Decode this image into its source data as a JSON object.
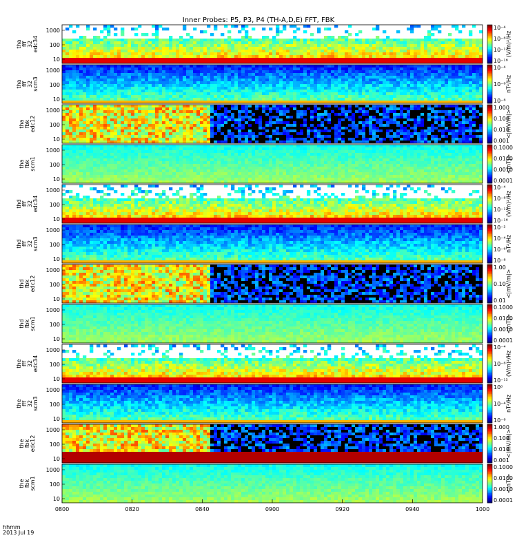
{
  "title": "Inner Probes: P5, P3, P4 (TH-A,D,E) FFT, FBK",
  "time_header": {
    "line1": "hhmm",
    "line2": "2013 Jul 19"
  },
  "chart_data": {
    "type": "heatmap",
    "x_ticks": [
      "0800",
      "0820",
      "0840",
      "0900",
      "0920",
      "0940",
      "1000"
    ],
    "panels": [
      {
        "probe": "tha",
        "ylabel": [
          "tha",
          "fff",
          "32",
          "edc34"
        ],
        "yticks": [
          "1000",
          "100",
          "10"
        ],
        "cbar_label": "(V/m)²/Hz",
        "cbar_ticks": [
          "10⁻⁴",
          "10⁻⁸",
          "10⁻¹²",
          "10⁻¹⁶"
        ]
      },
      {
        "probe": "tha",
        "ylabel": [
          "tha",
          "fff",
          "32",
          "scm3"
        ],
        "yticks": [
          "1000",
          "100",
          "10"
        ],
        "cbar_label": "nT²/Hz",
        "cbar_ticks": [
          "10⁻⁴",
          "10⁻⁶",
          "10⁻⁸"
        ]
      },
      {
        "probe": "tha",
        "ylabel": [
          "tha",
          "fbk",
          "edc12"
        ],
        "yticks": [
          "1000",
          "100",
          "10"
        ],
        "cbar_label": "<|mV/m|>",
        "cbar_ticks": [
          "1.000",
          "0.100",
          "0.010",
          "0.001"
        ]
      },
      {
        "probe": "tha",
        "ylabel": [
          "tha",
          "fbk",
          "scm1"
        ],
        "yticks": [
          "1000",
          "100",
          "10"
        ],
        "cbar_label": "<|nT|>",
        "cbar_ticks": [
          "0.1000",
          "0.0100",
          "0.0010",
          "0.0001"
        ]
      },
      {
        "probe": "thd",
        "ylabel": [
          "thd",
          "fff",
          "32",
          "edc34"
        ],
        "yticks": [
          "1000",
          "100",
          "10"
        ],
        "cbar_label": "(V/m)²/Hz",
        "cbar_ticks": [
          "10⁻⁴",
          "10⁻⁸",
          "10⁻¹²",
          "10⁻¹⁶"
        ]
      },
      {
        "probe": "thd",
        "ylabel": [
          "thd",
          "fff",
          "32",
          "scm3"
        ],
        "yticks": [
          "1000",
          "100",
          "10"
        ],
        "cbar_label": "nT²/Hz",
        "cbar_ticks": [
          "10⁻²",
          "10⁻⁴",
          "10⁻⁶",
          "10⁻⁸"
        ]
      },
      {
        "probe": "thd",
        "ylabel": [
          "thd",
          "fbk",
          "edc12"
        ],
        "yticks": [
          "1000",
          "100",
          "10"
        ],
        "cbar_label": "<|mV/m|>",
        "cbar_ticks": [
          "1.00",
          "0.10",
          "0.01"
        ]
      },
      {
        "probe": "thd",
        "ylabel": [
          "thd",
          "fbk",
          "scm1"
        ],
        "yticks": [
          "1000",
          "100",
          "10"
        ],
        "cbar_label": "<|nT|>",
        "cbar_ticks": [
          "0.1000",
          "0.0100",
          "0.0010",
          "0.0001"
        ]
      },
      {
        "probe": "the",
        "ylabel": [
          "the",
          "fff",
          "32",
          "edc34"
        ],
        "yticks": [
          "1000",
          "100",
          "10"
        ],
        "cbar_label": "(V/m)²/Hz",
        "cbar_ticks": [
          "10⁻⁴",
          "10⁻⁸",
          "10⁻¹²"
        ]
      },
      {
        "probe": "the",
        "ylabel": [
          "the",
          "fff",
          "32",
          "scm3"
        ],
        "yticks": [
          "1000",
          "100",
          "10"
        ],
        "cbar_label": "nT²/Hz",
        "cbar_ticks": [
          "10⁰",
          "10⁻⁴",
          "10⁻⁸"
        ]
      },
      {
        "probe": "the",
        "ylabel": [
          "the",
          "fbk",
          "edc12"
        ],
        "yticks": [
          "1000",
          "100",
          "10"
        ],
        "cbar_label": "<|mV/m|>",
        "cbar_ticks": [
          "1.000",
          "0.100",
          "0.010",
          "0.001"
        ]
      },
      {
        "probe": "the",
        "ylabel": [
          "the",
          "fbk",
          "scm1"
        ],
        "yticks": [
          "1000",
          "100",
          "10"
        ],
        "cbar_label": "<|nT|>",
        "cbar_ticks": [
          "0.1000",
          "0.0100",
          "0.0010",
          "0.0001"
        ]
      }
    ]
  }
}
